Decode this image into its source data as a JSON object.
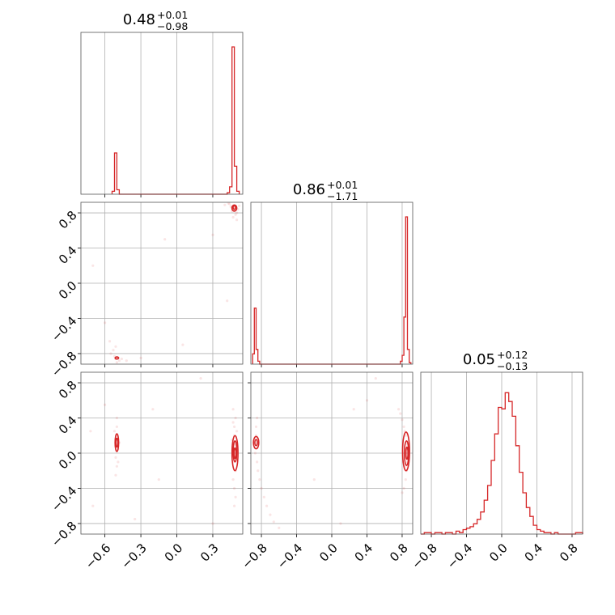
{
  "chart_data": {
    "type": "corner",
    "colors": {
      "series": "#d62728",
      "grid": "#b0b0b0",
      "frame": "#555555"
    },
    "grid": true,
    "parameters": [
      {
        "title": {
          "value": "0.48",
          "plus": "+0.01",
          "minus": "−0.98"
        },
        "range": [
          -0.8,
          0.55
        ]
      },
      {
        "title": {
          "value": "0.86",
          "plus": "+0.01",
          "minus": "−1.71"
        },
        "range": [
          -0.92,
          0.92
        ]
      },
      {
        "title": {
          "value": "0.05",
          "plus": "+0.12",
          "minus": "−0.13"
        },
        "range": [
          -0.92,
          0.92
        ]
      }
    ],
    "ticks": {
      "p0": [
        {
          "v": -0.6,
          "label": "−0.6"
        },
        {
          "v": -0.3,
          "label": "−0.3"
        },
        {
          "v": 0.0,
          "label": "0.0"
        },
        {
          "v": 0.3,
          "label": "0.3"
        }
      ],
      "p1": [
        {
          "v": -0.8,
          "label": "−0.8"
        },
        {
          "v": -0.4,
          "label": "−0.4"
        },
        {
          "v": 0.0,
          "label": "0.0"
        },
        {
          "v": 0.4,
          "label": "0.4"
        },
        {
          "v": 0.8,
          "label": "0.8"
        }
      ],
      "p2": [
        {
          "v": -0.8,
          "label": "−0.8"
        },
        {
          "v": -0.4,
          "label": "−0.4"
        },
        {
          "v": 0.0,
          "label": "0.0"
        },
        {
          "v": 0.4,
          "label": "0.4"
        },
        {
          "v": 0.8,
          "label": "0.8"
        }
      ]
    },
    "hist_p0": {
      "bin_edges": [
        -0.54,
        -0.52,
        -0.5,
        -0.48,
        0.42,
        0.44,
        0.46,
        0.48,
        0.5,
        0.52
      ],
      "counts": [
        0.02,
        0.28,
        0.03,
        0.0,
        0.01,
        0.05,
        1.0,
        0.19,
        0.02
      ]
    },
    "hist_p1": {
      "bin_edges": [
        -0.9,
        -0.88,
        -0.86,
        -0.84,
        -0.82,
        0.78,
        0.8,
        0.82,
        0.84,
        0.86,
        0.88,
        0.9
      ],
      "counts": [
        0.07,
        0.38,
        0.1,
        0.02,
        0.0,
        0.02,
        0.06,
        0.32,
        1.0,
        0.1,
        0.01
      ]
    },
    "hist_p2": {
      "bin_edges": [
        -0.92,
        -0.88,
        -0.84,
        -0.8,
        -0.76,
        -0.72,
        -0.68,
        -0.64,
        -0.6,
        -0.56,
        -0.52,
        -0.48,
        -0.44,
        -0.4,
        -0.36,
        -0.32,
        -0.28,
        -0.24,
        -0.2,
        -0.16,
        -0.12,
        -0.08,
        -0.04,
        0.0,
        0.04,
        0.08,
        0.12,
        0.16,
        0.2,
        0.24,
        0.28,
        0.32,
        0.36,
        0.4,
        0.44,
        0.48,
        0.52,
        0.56,
        0.6,
        0.64,
        0.68,
        0.72,
        0.76,
        0.8,
        0.84,
        0.88,
        0.92
      ],
      "counts": [
        0.0,
        0.01,
        0.01,
        0.0,
        0.01,
        0.01,
        0.0,
        0.01,
        0.01,
        0.0,
        0.02,
        0.01,
        0.03,
        0.04,
        0.05,
        0.07,
        0.1,
        0.15,
        0.23,
        0.33,
        0.5,
        0.68,
        0.86,
        0.85,
        0.96,
        0.9,
        0.8,
        0.6,
        0.42,
        0.28,
        0.18,
        0.12,
        0.06,
        0.03,
        0.02,
        0.01,
        0.01,
        0.0,
        0.01,
        0.0,
        0.0,
        0.0,
        0.0,
        0.0,
        0.01,
        0.01
      ]
    },
    "scatter_p0_p1": {
      "points": [
        [
          0.47,
          0.86
        ],
        [
          0.48,
          0.85
        ],
        [
          0.49,
          0.87
        ],
        [
          0.46,
          0.82
        ],
        [
          0.5,
          0.8
        ],
        [
          0.44,
          0.9
        ],
        [
          0.51,
          0.84
        ],
        [
          0.45,
          0.87
        ],
        [
          0.49,
          0.78
        ],
        [
          0.43,
          0.91
        ],
        [
          0.47,
          0.75
        ],
        [
          0.52,
          0.88
        ],
        [
          0.48,
          0.93
        ],
        [
          0.4,
          0.89
        ],
        [
          0.5,
          0.72
        ],
        [
          -0.5,
          -0.84
        ],
        [
          -0.51,
          -0.86
        ],
        [
          -0.49,
          -0.85
        ],
        [
          -0.52,
          -0.83
        ],
        [
          -0.48,
          -0.88
        ],
        [
          -0.53,
          -0.76
        ],
        [
          -0.51,
          -0.72
        ],
        [
          -0.46,
          -0.86
        ],
        [
          -0.55,
          -0.8
        ],
        [
          -0.42,
          -0.88
        ],
        [
          -0.5,
          -0.9
        ],
        [
          -0.56,
          -0.66
        ],
        [
          0.35,
          0.94
        ],
        [
          0.25,
          0.95
        ],
        [
          0.15,
          0.98
        ],
        [
          -0.1,
          0.5
        ],
        [
          -0.7,
          0.2
        ],
        [
          0.3,
          0.55
        ],
        [
          -0.3,
          -0.85
        ],
        [
          -0.6,
          -0.45
        ],
        [
          0.05,
          -0.7
        ],
        [
          0.42,
          -0.2
        ]
      ],
      "contours": [
        {
          "cx": 0.48,
          "cy": 0.855,
          "rx": 0.02,
          "ry": 0.035,
          "rot": 0
        },
        {
          "cx": 0.48,
          "cy": 0.86,
          "rx": 0.011,
          "ry": 0.02,
          "rot": 0
        },
        {
          "cx": -0.5,
          "cy": -0.85,
          "rx": 0.015,
          "ry": 0.012,
          "rot": 0
        }
      ]
    },
    "scatter_p0_p2": {
      "points": [
        [
          -0.5,
          0.1
        ],
        [
          -0.51,
          0.15
        ],
        [
          -0.49,
          0.05
        ],
        [
          -0.5,
          0.2
        ],
        [
          -0.51,
          -0.05
        ],
        [
          -0.5,
          0.3
        ],
        [
          -0.5,
          -0.15
        ],
        [
          -0.52,
          0.25
        ],
        [
          -0.49,
          -0.1
        ],
        [
          -0.5,
          0.4
        ],
        [
          -0.51,
          -0.25
        ],
        [
          -0.48,
          0.12
        ],
        [
          0.48,
          0.0
        ],
        [
          0.49,
          0.1
        ],
        [
          0.47,
          -0.1
        ],
        [
          0.48,
          0.2
        ],
        [
          0.49,
          -0.2
        ],
        [
          0.48,
          0.3
        ],
        [
          0.47,
          -0.3
        ],
        [
          0.49,
          0.4
        ],
        [
          0.48,
          -0.4
        ],
        [
          0.47,
          0.5
        ],
        [
          0.49,
          -0.5
        ],
        [
          0.48,
          0.05
        ],
        [
          0.5,
          -0.05
        ],
        [
          0.46,
          0.15
        ],
        [
          0.48,
          -0.6
        ],
        [
          0.47,
          0.35
        ],
        [
          0.5,
          0.25
        ],
        [
          -0.72,
          0.25
        ],
        [
          -0.7,
          -0.6
        ],
        [
          -0.35,
          -0.75
        ],
        [
          -0.15,
          -0.3
        ],
        [
          0.2,
          0.85
        ],
        [
          -0.6,
          0.55
        ],
        [
          0.3,
          -0.8
        ],
        [
          -0.2,
          0.5
        ]
      ],
      "contours": [
        {
          "cx": -0.5,
          "cy": 0.12,
          "rx": 0.015,
          "ry": 0.1,
          "rot": 0
        },
        {
          "cx": -0.5,
          "cy": 0.12,
          "rx": 0.008,
          "ry": 0.05,
          "rot": 0
        },
        {
          "cx": 0.485,
          "cy": 0.0,
          "rx": 0.025,
          "ry": 0.2,
          "rot": 0
        },
        {
          "cx": 0.485,
          "cy": 0.02,
          "rx": 0.015,
          "ry": 0.12,
          "rot": 0
        },
        {
          "cx": 0.485,
          "cy": 0.0,
          "rx": 0.008,
          "ry": 0.06,
          "rot": 0
        }
      ]
    },
    "scatter_p1_p2": {
      "points": [
        [
          0.78,
          0.45
        ],
        [
          0.8,
          0.38
        ],
        [
          0.82,
          0.3
        ],
        [
          0.84,
          0.2
        ],
        [
          0.85,
          0.1
        ],
        [
          0.86,
          0.0
        ],
        [
          0.86,
          -0.1
        ],
        [
          0.85,
          -0.2
        ],
        [
          0.84,
          -0.3
        ],
        [
          0.82,
          -0.4
        ],
        [
          0.8,
          -0.45
        ],
        [
          0.83,
          0.25
        ],
        [
          0.87,
          0.05
        ],
        [
          0.84,
          -0.15
        ],
        [
          0.76,
          0.5
        ],
        [
          -0.86,
          0.1
        ],
        [
          -0.86,
          0.2
        ],
        [
          -0.87,
          0.0
        ],
        [
          -0.85,
          -0.1
        ],
        [
          -0.84,
          -0.2
        ],
        [
          -0.82,
          -0.3
        ],
        [
          -0.8,
          -0.4
        ],
        [
          -0.77,
          -0.5
        ],
        [
          -0.74,
          -0.6
        ],
        [
          -0.7,
          -0.7
        ],
        [
          -0.66,
          -0.78
        ],
        [
          -0.86,
          0.3
        ],
        [
          -0.85,
          0.4
        ],
        [
          -0.6,
          -0.85
        ],
        [
          0.25,
          0.5
        ],
        [
          0.5,
          0.85
        ],
        [
          -0.2,
          -0.3
        ],
        [
          0.1,
          -0.8
        ],
        [
          0.4,
          0.6
        ]
      ],
      "contours": [
        {
          "cx": 0.845,
          "cy": 0.02,
          "rx": 0.04,
          "ry": 0.22,
          "rot": 0
        },
        {
          "cx": 0.85,
          "cy": 0.0,
          "rx": 0.025,
          "ry": 0.14,
          "rot": 0
        },
        {
          "cx": 0.855,
          "cy": 0.0,
          "rx": 0.012,
          "ry": 0.07,
          "rot": 0
        },
        {
          "cx": -0.86,
          "cy": 0.12,
          "rx": 0.03,
          "ry": 0.07,
          "rot": 0
        },
        {
          "cx": -0.86,
          "cy": 0.12,
          "rx": 0.015,
          "ry": 0.035,
          "rot": 0
        }
      ]
    }
  }
}
